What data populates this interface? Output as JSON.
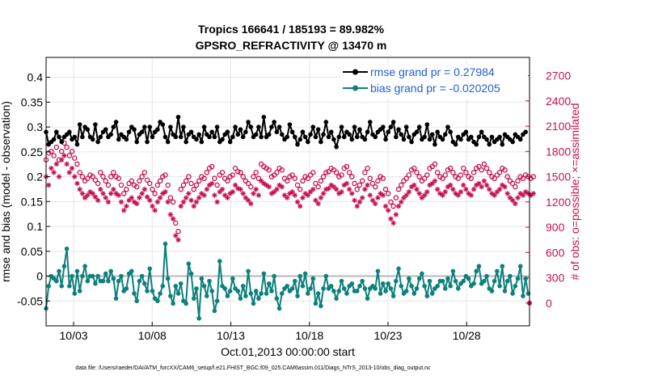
{
  "colors": {
    "rmse": "#000000",
    "bias": "#0e807c",
    "obs": "#c8104f",
    "zero_line": "#b8b8b8",
    "legend_text": "#1f5fd6"
  },
  "chart_data": {
    "type": "line",
    "title_line1": "Tropics 166641 / 185193 = 89.982%",
    "title_line2": "GPSRO_REFRACTIVITY @ 13470 m",
    "xlabel": "Oct.01,2013 00:00:00 start",
    "ylabel_left": "rmse and bias (model - observation)",
    "ylabel_right": "# of obs: o=possible; ×=assimilated",
    "x_start_day": 1.25,
    "x_end_day": 32,
    "ylim_left": [
      -0.1,
      0.44
    ],
    "ylim_right": [
      -270,
      2916
    ],
    "xticks": [
      {
        "day": 3,
        "label": "10/03"
      },
      {
        "day": 8,
        "label": "10/08"
      },
      {
        "day": 13,
        "label": "10/13"
      },
      {
        "day": 18,
        "label": "10/18"
      },
      {
        "day": 23,
        "label": "10/23"
      },
      {
        "day": 28,
        "label": "10/28"
      }
    ],
    "yticks_left": [
      {
        "v": -0.05,
        "label": "-0.05"
      },
      {
        "v": 0,
        "label": "0"
      },
      {
        "v": 0.05,
        "label": "0.05"
      },
      {
        "v": 0.1,
        "label": "0.1"
      },
      {
        "v": 0.15,
        "label": "0.15"
      },
      {
        "v": 0.2,
        "label": "0.2"
      },
      {
        "v": 0.25,
        "label": "0.25"
      },
      {
        "v": 0.3,
        "label": "0.3"
      },
      {
        "v": 0.35,
        "label": "0.35"
      },
      {
        "v": 0.4,
        "label": "0.4"
      }
    ],
    "yticks_right": [
      {
        "v": 0,
        "label": "0"
      },
      {
        "v": 300,
        "label": "300"
      },
      {
        "v": 600,
        "label": "600"
      },
      {
        "v": 900,
        "label": "900"
      },
      {
        "v": 1200,
        "label": "1200"
      },
      {
        "v": 1500,
        "label": "1500"
      },
      {
        "v": 1800,
        "label": "1800"
      },
      {
        "v": 2100,
        "label": "2100"
      },
      {
        "v": 2400,
        "label": "2400"
      },
      {
        "v": 2700,
        "label": "2700"
      }
    ],
    "legend": [
      {
        "name": "rmse grand pr = 0.27984",
        "series": "rmse"
      },
      {
        "name": "bias grand pr = -0.020205",
        "series": "bias"
      }
    ],
    "series": [
      {
        "name": "rmse",
        "values": [
          0.29,
          0.265,
          0.27,
          0.275,
          0.29,
          0.28,
          0.27,
          0.28,
          0.285,
          0.29,
          0.275,
          0.28,
          0.265,
          0.305,
          0.28,
          0.3,
          0.295,
          0.28,
          0.275,
          0.305,
          0.27,
          0.28,
          0.29,
          0.295,
          0.28,
          0.285,
          0.3,
          0.31,
          0.275,
          0.285,
          0.28,
          0.275,
          0.29,
          0.3,
          0.295,
          0.27,
          0.285,
          0.29,
          0.3,
          0.27,
          0.3,
          0.28,
          0.29,
          0.295,
          0.31,
          0.305,
          0.28,
          0.27,
          0.3,
          0.285,
          0.28,
          0.32,
          0.28,
          0.3,
          0.27,
          0.285,
          0.29,
          0.28,
          0.275,
          0.285,
          0.27,
          0.3,
          0.285,
          0.28,
          0.29,
          0.28,
          0.3,
          0.27,
          0.275,
          0.285,
          0.29,
          0.27,
          0.28,
          0.3,
          0.285,
          0.295,
          0.28,
          0.29,
          0.31,
          0.3,
          0.28,
          0.285,
          0.3,
          0.28,
          0.32,
          0.28,
          0.285,
          0.3,
          0.31,
          0.29,
          0.3,
          0.285,
          0.275,
          0.28,
          0.305,
          0.29,
          0.28,
          0.265,
          0.275,
          0.29,
          0.28,
          0.27,
          0.285,
          0.3,
          0.28,
          0.295,
          0.27,
          0.285,
          0.31,
          0.28,
          0.29,
          0.275,
          0.26,
          0.28,
          0.3,
          0.28,
          0.29,
          0.285,
          0.275,
          0.3,
          0.28,
          0.295,
          0.28,
          0.275,
          0.29,
          0.31,
          0.285,
          0.28,
          0.29,
          0.295,
          0.3,
          0.275,
          0.29,
          0.3,
          0.31,
          0.28,
          0.295,
          0.285,
          0.275,
          0.3,
          0.28,
          0.27,
          0.285,
          0.29,
          0.3,
          0.275,
          0.28,
          0.305,
          0.275,
          0.285,
          0.265,
          0.29,
          0.28,
          0.275,
          0.285,
          0.3,
          0.29,
          0.27,
          0.265,
          0.28,
          0.275,
          0.285,
          0.29,
          0.275,
          0.28,
          0.27,
          0.265,
          0.28,
          0.29,
          0.28,
          0.275,
          0.265,
          0.28,
          0.27,
          0.275,
          0.28,
          0.265,
          0.285,
          0.28,
          0.275,
          0.27,
          0.285,
          0.28,
          0.275,
          0.285,
          0.29
        ]
      },
      {
        "name": "bias",
        "values": [
          -0.065,
          -0.02,
          0.0,
          -0.005,
          -0.01,
          0.01,
          -0.02,
          0.02,
          0.055,
          -0.02,
          0.0,
          -0.035,
          0.01,
          -0.03,
          0.0,
          0.02,
          -0.01,
          0.0,
          0.0,
          -0.015,
          0.0,
          -0.01,
          -0.01,
          0.005,
          -0.01,
          0.01,
          -0.005,
          -0.045,
          -0.01,
          0.0,
          -0.03,
          -0.025,
          0.005,
          0.01,
          -0.035,
          -0.05,
          -0.01,
          0.0,
          -0.015,
          -0.03,
          0.015,
          -0.03,
          -0.045,
          -0.05,
          -0.035,
          -0.02,
          0.065,
          -0.005,
          -0.04,
          -0.055,
          -0.02,
          -0.035,
          -0.015,
          -0.05,
          -0.055,
          0.025,
          0.005,
          -0.045,
          -0.025,
          -0.085,
          -0.005,
          -0.02,
          -0.04,
          -0.01,
          -0.03,
          -0.07,
          -0.05,
          0.03,
          -0.02,
          -0.025,
          -0.04,
          -0.03,
          -0.005,
          -0.025,
          -0.03,
          -0.045,
          -0.02,
          -0.04,
          0.01,
          -0.035,
          -0.055,
          -0.03,
          -0.045,
          -0.035,
          0.005,
          -0.035,
          -0.015,
          -0.03,
          0.0,
          -0.045,
          -0.065,
          -0.035,
          -0.025,
          -0.02,
          -0.03,
          -0.025,
          -0.01,
          -0.04,
          0.0,
          -0.02,
          0.005,
          -0.035,
          -0.025,
          -0.005,
          -0.055,
          -0.035,
          -0.06,
          -0.025,
          0.0,
          -0.025,
          -0.02,
          -0.03,
          -0.045,
          -0.03,
          -0.01,
          -0.025,
          -0.035,
          -0.02,
          -0.015,
          -0.03,
          -0.03,
          -0.02,
          -0.01,
          -0.025,
          -0.045,
          -0.025,
          -0.02,
          -0.025,
          0.01,
          -0.035,
          -0.015,
          -0.03,
          -0.015,
          -0.025,
          -0.04,
          -0.01,
          0.015,
          -0.02,
          -0.035,
          -0.03,
          -0.005,
          -0.02,
          -0.035,
          -0.025,
          -0.005,
          0.005,
          -0.02,
          -0.04,
          -0.01,
          -0.035,
          -0.025,
          -0.02,
          -0.01,
          -0.01,
          -0.025,
          -0.005,
          -0.02,
          0.01,
          -0.01,
          -0.025,
          -0.015,
          -0.01,
          0.0,
          -0.005,
          -0.02,
          -0.015,
          0.01,
          0.02,
          -0.015,
          -0.01,
          0.0,
          -0.025,
          -0.03,
          -0.01,
          0.01,
          -0.02,
          0.02,
          -0.03,
          -0.01,
          0.0,
          -0.035,
          -0.02,
          -0.005,
          0.02,
          -0.04,
          -0.005,
          -0.035
        ]
      },
      {
        "name": "obs_possible",
        "values": [
          1700,
          1780,
          1800,
          1750,
          1850,
          1700,
          1800,
          1900,
          1850,
          1750,
          1800,
          1720,
          1650,
          1550,
          1500,
          1450,
          1480,
          1520,
          1500,
          1460,
          1420,
          1550,
          1500,
          1450,
          1400,
          1500,
          1550,
          1500,
          1480,
          1400,
          1300,
          1350,
          1420,
          1450,
          1400,
          1380,
          1450,
          1500,
          1550,
          1460,
          1420,
          1350,
          1300,
          1400,
          1450,
          1500,
          1520,
          1400,
          1250,
          1200,
          950,
          850,
          1350,
          1400,
          1450,
          1500,
          1420,
          1350,
          1400,
          1450,
          1500,
          1480,
          1550,
          1600,
          1620,
          1480,
          1400,
          1520,
          1550,
          1480,
          1450,
          1500,
          1520,
          1600,
          1560,
          1550,
          1500,
          1450,
          1420,
          1380,
          1500,
          1550,
          1480,
          1650,
          1620,
          1600,
          1580,
          1500,
          1520,
          1550,
          1600,
          1580,
          1480,
          1450,
          1500,
          1520,
          1480,
          1400,
          1350,
          1450,
          1500,
          1480,
          1520,
          1550,
          1420,
          1380,
          1450,
          1500,
          1550,
          1560,
          1600,
          1580,
          1550,
          1500,
          1520,
          1600,
          1620,
          1550,
          1500,
          1420,
          1350,
          1400,
          1450,
          1550,
          1600,
          1480,
          1420,
          1380,
          1450,
          1500,
          1480,
          1350,
          1300,
          1200,
          1150,
          1250,
          1350,
          1400,
          1450,
          1480,
          1520,
          1580,
          1600,
          1550,
          1500,
          1450,
          1480,
          1520,
          1600,
          1620,
          1650,
          1550,
          1500,
          1480,
          1520,
          1580,
          1600,
          1550,
          1500,
          1480,
          1520,
          1600,
          1550,
          1500,
          1480,
          1550,
          1600,
          1620,
          1580,
          1650,
          1600,
          1550,
          1500,
          1480,
          1520,
          1550,
          1600,
          1580,
          1500,
          1450,
          1420,
          1380,
          1450,
          1500,
          1480,
          1520,
          1500,
          1480,
          1500
        ]
      },
      {
        "name": "obs_assimilated",
        "values": [
          1500,
          1400,
          1600,
          1550,
          1650,
          1500,
          1700,
          1750,
          1650,
          1550,
          1600,
          1500,
          1420,
          1350,
          1300,
          1250,
          1280,
          1320,
          1300,
          1260,
          1220,
          1350,
          1300,
          1250,
          1200,
          1300,
          1350,
          1300,
          1280,
          1200,
          1100,
          1150,
          1220,
          1250,
          1200,
          1180,
          1250,
          1300,
          1350,
          1260,
          1220,
          1150,
          1100,
          1200,
          1250,
          1300,
          1320,
          1200,
          1050,
          1000,
          800,
          750,
          1150,
          1200,
          1250,
          1300,
          1220,
          1150,
          1200,
          1250,
          1300,
          1280,
          1350,
          1400,
          1420,
          1280,
          1200,
          1320,
          1350,
          1280,
          1250,
          1300,
          1320,
          1400,
          1360,
          1350,
          1300,
          1250,
          1220,
          1180,
          1300,
          1350,
          1280,
          1450,
          1420,
          1400,
          1380,
          1300,
          1320,
          1350,
          1400,
          1380,
          1280,
          1250,
          1300,
          1320,
          1280,
          1200,
          1150,
          1250,
          1300,
          1280,
          1320,
          1350,
          1220,
          1180,
          1250,
          1300,
          1350,
          1360,
          1400,
          1380,
          1350,
          1300,
          1320,
          1400,
          1420,
          1350,
          1300,
          1220,
          1150,
          1200,
          1250,
          1350,
          1400,
          1280,
          1220,
          1180,
          1250,
          1300,
          1280,
          1150,
          1100,
          1000,
          950,
          1050,
          1150,
          1200,
          1250,
          1280,
          1320,
          1380,
          1400,
          1350,
          1300,
          1250,
          1280,
          1320,
          1400,
          1420,
          1450,
          1350,
          1300,
          1280,
          1320,
          1380,
          1400,
          1350,
          1300,
          1280,
          1320,
          1400,
          1350,
          1300,
          1280,
          1350,
          1400,
          1420,
          1380,
          1450,
          1400,
          1350,
          1300,
          1280,
          1320,
          1350,
          1400,
          1380,
          1300,
          1250,
          1220,
          1180,
          1250,
          1300,
          1280,
          1320,
          1300,
          1280,
          1300
        ]
      }
    ],
    "footer": "data file: /Users/raeder/DAI/ATM_forcXX/CAM6_setup/f.e21.FHIST_BGC.f09_025.CAM6assim.011/Diags_NTrS_2013-10/obs_diag_output.nc"
  }
}
